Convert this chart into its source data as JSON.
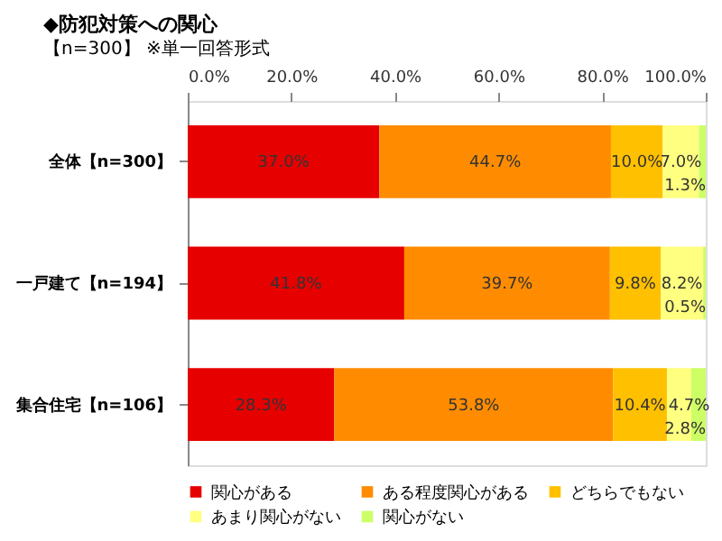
{
  "chart_data": {
    "type": "bar",
    "orientation": "horizontal",
    "stacked": true,
    "title": "◆防犯対策への関心",
    "subtitle": "【n=300】 ※単一回答形式",
    "categories": [
      "全体【n=300】",
      "一戸建て【n=194】",
      "集合住宅【n=106】"
    ],
    "series": [
      {
        "name": "関心がある",
        "color": "#e60000",
        "values": [
          37.0,
          41.8,
          28.3
        ],
        "value_labels": [
          "37.0%",
          "41.8%",
          "28.3%"
        ]
      },
      {
        "name": "ある程度関心がある",
        "color": "#ff8c00",
        "values": [
          44.7,
          39.7,
          53.8
        ],
        "value_labels": [
          "44.7%",
          "39.7%",
          "53.8%"
        ]
      },
      {
        "name": "どちらでもない",
        "color": "#ffc000",
        "values": [
          10.0,
          9.8,
          10.4
        ],
        "value_labels": [
          "10.0%",
          "9.8%",
          "10.4%"
        ]
      },
      {
        "name": "あまり関心がない",
        "color": "#ffff80",
        "values": [
          7.0,
          8.2,
          4.7
        ],
        "value_labels": [
          "7.0%",
          "8.2%",
          "4.7%"
        ]
      },
      {
        "name": "関心がない",
        "color": "#ccff66",
        "values": [
          1.3,
          0.5,
          2.8
        ],
        "value_labels": [
          "1.3%",
          "0.5%",
          "2.8%"
        ]
      }
    ],
    "xlim": [
      0,
      100
    ],
    "xticks": [
      {
        "value": 0,
        "label": "0.0%"
      },
      {
        "value": 20,
        "label": "20.0%"
      },
      {
        "value": 40,
        "label": "40.0%"
      },
      {
        "value": 60,
        "label": "60.0%"
      },
      {
        "value": 80,
        "label": "80.0%"
      },
      {
        "value": 100,
        "label": "100.0%"
      }
    ],
    "grid": false,
    "legend": "bottom"
  }
}
